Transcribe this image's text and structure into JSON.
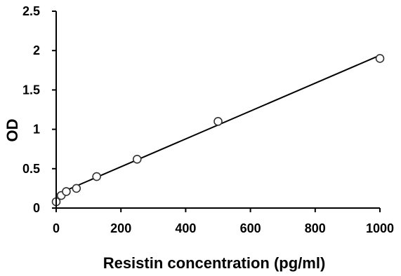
{
  "chart_data": {
    "type": "scatter",
    "title": "",
    "xlabel": "Resistin concentration (pg/ml)",
    "ylabel": "OD",
    "xlim": [
      0,
      1000
    ],
    "ylim": [
      0,
      2.5
    ],
    "x_ticks": [
      0,
      200,
      400,
      600,
      800,
      1000
    ],
    "x_tick_labels": [
      "0",
      "200",
      "400",
      "600",
      "800",
      "1000"
    ],
    "y_ticks": [
      0,
      0.5,
      1,
      1.5,
      2,
      2.5
    ],
    "y_tick_labels": [
      "0",
      "0.5",
      "1",
      "1.5",
      "2",
      "2.5"
    ],
    "grid": false,
    "legend": "none",
    "series": [
      {
        "x": [
          0,
          15.6,
          31.25,
          62.5,
          125,
          250,
          500,
          1000
        ],
        "y": [
          0.08,
          0.16,
          0.21,
          0.25,
          0.4,
          0.62,
          1.1,
          1.9
        ],
        "marker": "open-circle"
      }
    ],
    "trendline": {
      "type": "linear",
      "x": [
        0,
        1000
      ],
      "y": [
        0.17,
        1.94
      ]
    },
    "colors": {
      "axis": "#000000",
      "marker_stroke": "#333333",
      "marker_fill": "#ffffff",
      "line": "#000000"
    }
  }
}
